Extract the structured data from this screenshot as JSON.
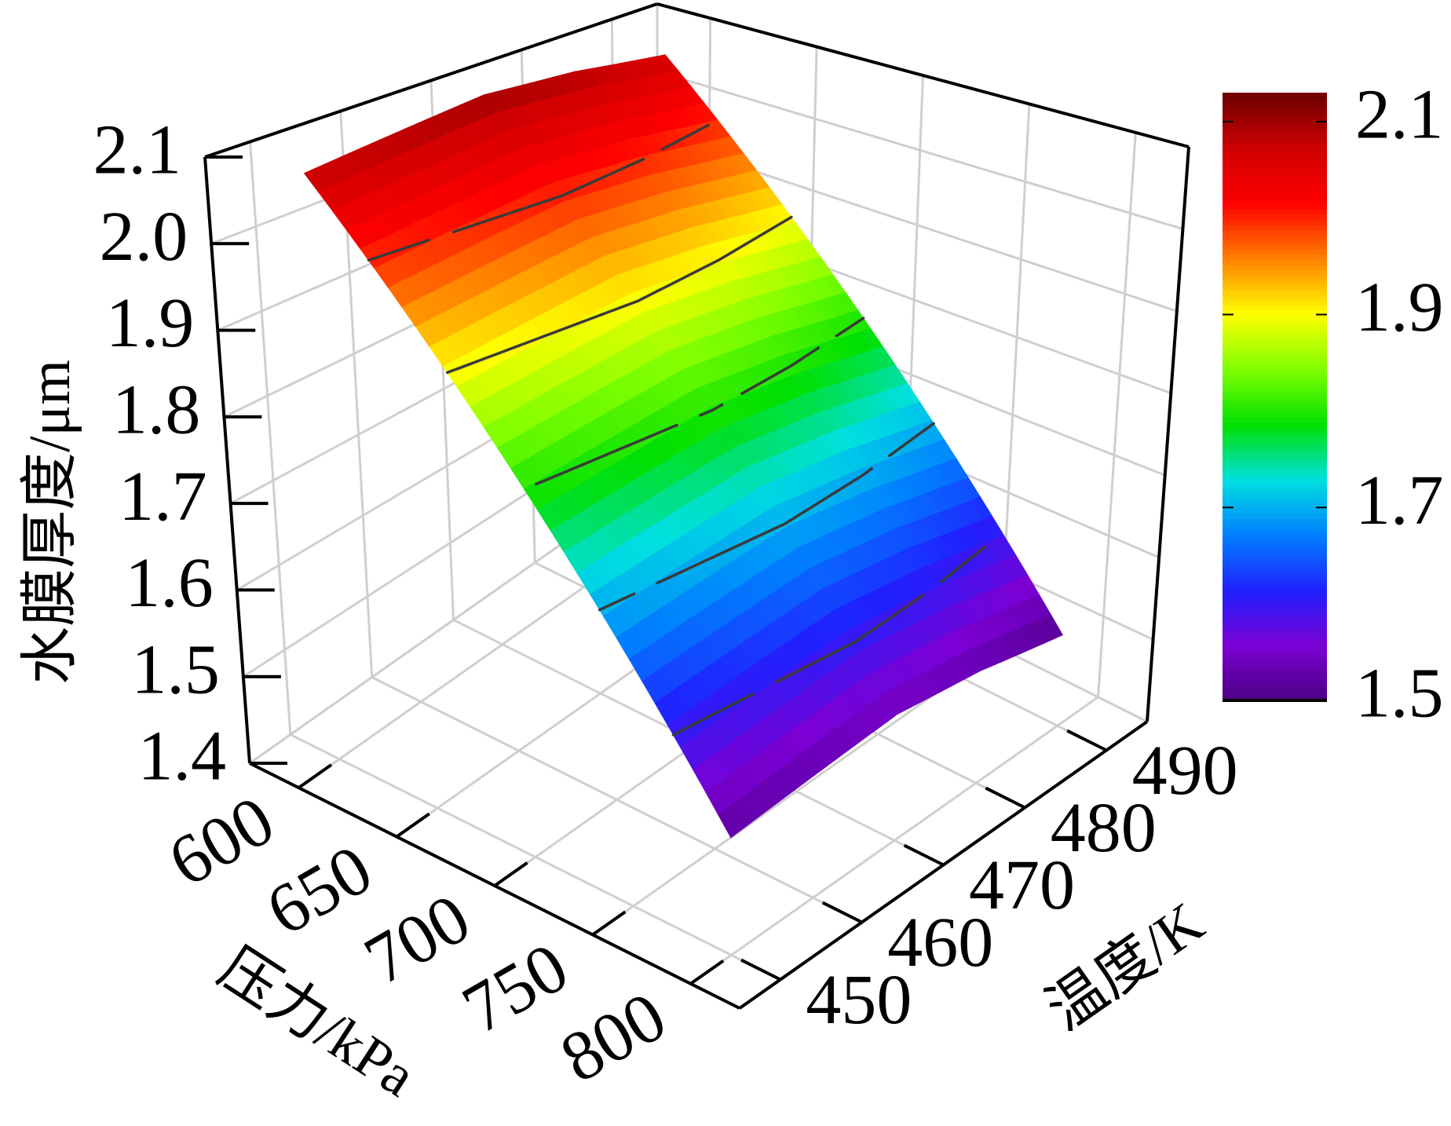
{
  "chart_data": {
    "type": "surface3d",
    "xlabel": "压力/kPa",
    "ylabel": "温度/K",
    "zlabel": "水膜厚度/μm",
    "x": [
      600,
      650,
      700,
      750,
      800
    ],
    "y": [
      450,
      460,
      470,
      480,
      490
    ],
    "z": [
      [
        2.08,
        2.09,
        2.1,
        2.09,
        2.07
      ],
      [
        1.94,
        1.95,
        1.96,
        1.95,
        1.93
      ],
      [
        1.8,
        1.81,
        1.82,
        1.81,
        1.79
      ],
      [
        1.66,
        1.67,
        1.68,
        1.67,
        1.65
      ],
      [
        1.52,
        1.53,
        1.54,
        1.53,
        1.51
      ]
    ],
    "xlim": [
      575,
      825
    ],
    "xticks": [
      600,
      650,
      700,
      750,
      800
    ],
    "ylim": [
      445,
      495
    ],
    "yticks": [
      450,
      460,
      470,
      480,
      490
    ],
    "zlim": [
      1.4,
      2.1
    ],
    "zticks": [
      1.4,
      1.5,
      1.6,
      1.7,
      1.8,
      1.9,
      {
        "value": 2,
        "label": "2.0"
      },
      2.1
    ],
    "clim": [
      1.5,
      2.13
    ],
    "cticks": [
      1.5,
      1.7,
      1.9,
      2.1
    ],
    "colormap": [
      "#4b0082",
      "#7b00d4",
      "#2020ff",
      "#0080ff",
      "#00e0e0",
      "#00e000",
      "#80ff00",
      "#ffff00",
      "#ff8000",
      "#ff0000",
      "#d00000",
      "#6b0000"
    ],
    "contours": true,
    "grid": true
  }
}
